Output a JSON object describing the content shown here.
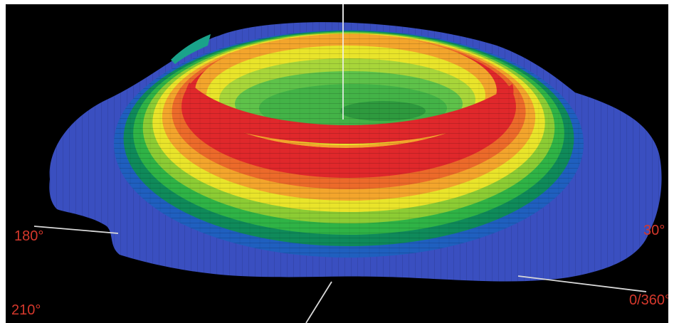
{
  "figure": {
    "colors": {
      "background": "#000000",
      "axis": "#e8e8e8",
      "label": "#d5382c",
      "base": "#3a4fc0",
      "bands": [
        "#1f5fbf",
        "#0f8a5a",
        "#2fb346",
        "#8ccc34",
        "#e9e42a",
        "#f3a52c",
        "#ec6a2a",
        "#e0282b"
      ],
      "inner": [
        "#f3a52c",
        "#e9e42a",
        "#a8d63a",
        "#5ec24a",
        "#43b347"
      ]
    },
    "angle_labels": {
      "left": "180°",
      "right": "30°",
      "bottom_left": "210°",
      "bottom_right": "0/360°"
    }
  }
}
